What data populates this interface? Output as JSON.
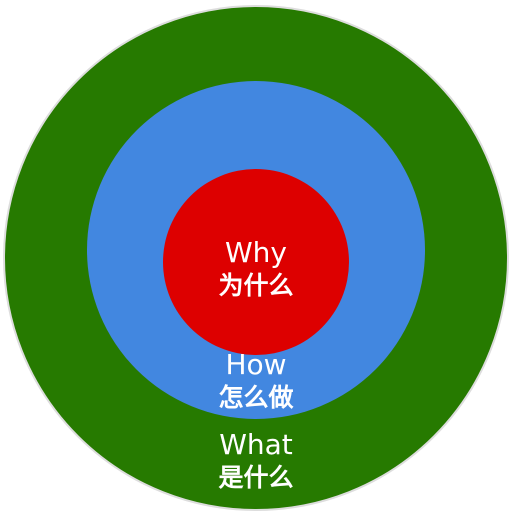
{
  "rings": {
    "outer": {
      "label_en": "What",
      "label_zh": "是什么",
      "color": "#267a00"
    },
    "middle": {
      "label_en": "How",
      "label_zh": "怎么做",
      "color": "#4287e0"
    },
    "inner": {
      "label_en": "Why",
      "label_zh": "为什么",
      "color": "#dd0000"
    }
  },
  "border_color": "#dddddd"
}
